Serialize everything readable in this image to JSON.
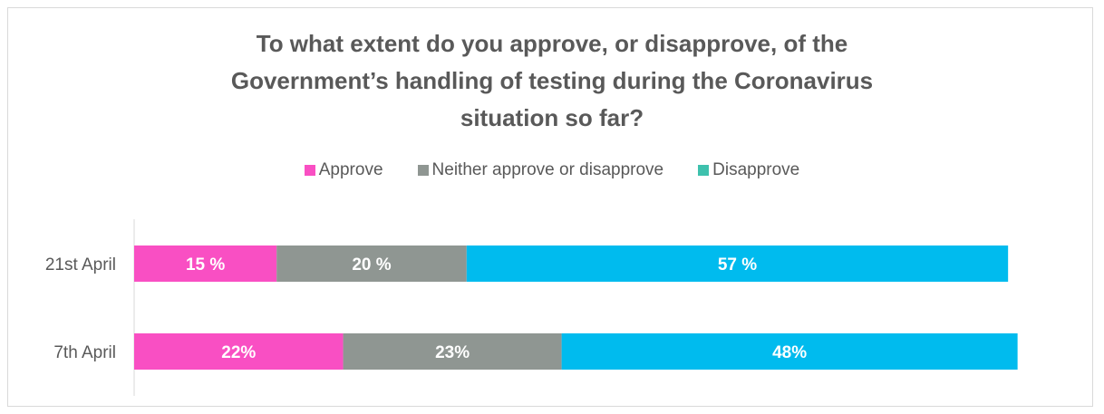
{
  "chart_data": {
    "type": "bar",
    "orientation": "horizontal",
    "stacked": true,
    "title_lines": [
      "To what extent do you approve, or disapprove, of the",
      "Government’s handling of testing during the Coronavirus",
      "situation so far?"
    ],
    "legend": [
      {
        "name": "Approve",
        "color": "#f94fc3"
      },
      {
        "name": "Neither approve or disapprove",
        "color": "#8f9692"
      },
      {
        "name": "Disapprove",
        "color": "#3ec1ad"
      }
    ],
    "legend_position": "top-center",
    "categories": [
      "21st April",
      "7th April"
    ],
    "series": [
      {
        "name": "Approve",
        "color": "#f94fc3",
        "values": [
          15,
          22
        ],
        "labels": [
          "15 %",
          "22%"
        ]
      },
      {
        "name": "Neither approve or disapprove",
        "color": "#8f9692",
        "values": [
          20,
          23
        ],
        "labels": [
          "20 %",
          "23%"
        ]
      },
      {
        "name": "Disapprove",
        "color": "#00bbee",
        "values": [
          57,
          48
        ],
        "labels": [
          "57 %",
          "48%"
        ]
      }
    ],
    "xlim": [
      0,
      100
    ],
    "grid": false
  }
}
